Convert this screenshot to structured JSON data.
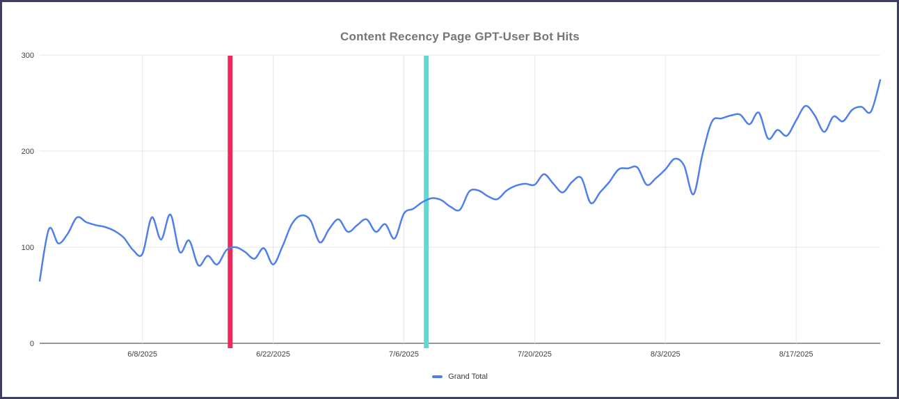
{
  "chart_data": {
    "type": "line",
    "title": "Content Recency Page GPT-User Bot Hits",
    "xlabel": "",
    "ylabel": "",
    "y_ticks": [
      0,
      100,
      200,
      300
    ],
    "ylim": [
      0,
      300
    ],
    "grid": true,
    "legend_position": "bottom",
    "x_tick_labels": [
      "6/8/2025",
      "6/22/2025",
      "7/6/2025",
      "7/20/2025",
      "8/3/2025",
      "8/17/2025"
    ],
    "x_tick_day_offsets": [
      11,
      25,
      39,
      53,
      67,
      81
    ],
    "x_range_days": 90,
    "x_start_date_estimated": "5/28/2025",
    "x_end_date_estimated": "8/26/2025",
    "series": [
      {
        "name": "Grand Total",
        "color": "#4e7fec",
        "day_offsets_note": "one value per day from estimated start date",
        "values": [
          65,
          119,
          104,
          114,
          131,
          126,
          123,
          121,
          117,
          110,
          97,
          93,
          131,
          108,
          134,
          95,
          107,
          81,
          91,
          82,
          97,
          100,
          95,
          88,
          99,
          82,
          101,
          124,
          133,
          128,
          105,
          119,
          129,
          116,
          123,
          129,
          116,
          124,
          109,
          135,
          140,
          147,
          151,
          149,
          142,
          139,
          158,
          159,
          153,
          150,
          159,
          164,
          166,
          165,
          176,
          166,
          157,
          168,
          172,
          146,
          157,
          168,
          181,
          182,
          183,
          165,
          172,
          181,
          192,
          185,
          155,
          198,
          231,
          234,
          237,
          238,
          228,
          240,
          213,
          222,
          216,
          232,
          247,
          237,
          220,
          236,
          231,
          243,
          246,
          241,
          274
        ]
      }
    ],
    "annotations": [
      {
        "name": "pink-vertical-line",
        "color": "#ec2a5c",
        "day_offset": 20.4,
        "approx_date": "6/17/2025"
      },
      {
        "name": "teal-vertical-line",
        "color": "#5edad2",
        "day_offset": 41.4,
        "approx_date": "7/8/2025"
      }
    ],
    "colors": {
      "frame_border": "#3e3e60",
      "background": "#ffffff",
      "gridline": "#e6e6e6",
      "axis_baseline": "#333333",
      "tick_label": "#3f3f3f",
      "title": "#757575"
    }
  }
}
